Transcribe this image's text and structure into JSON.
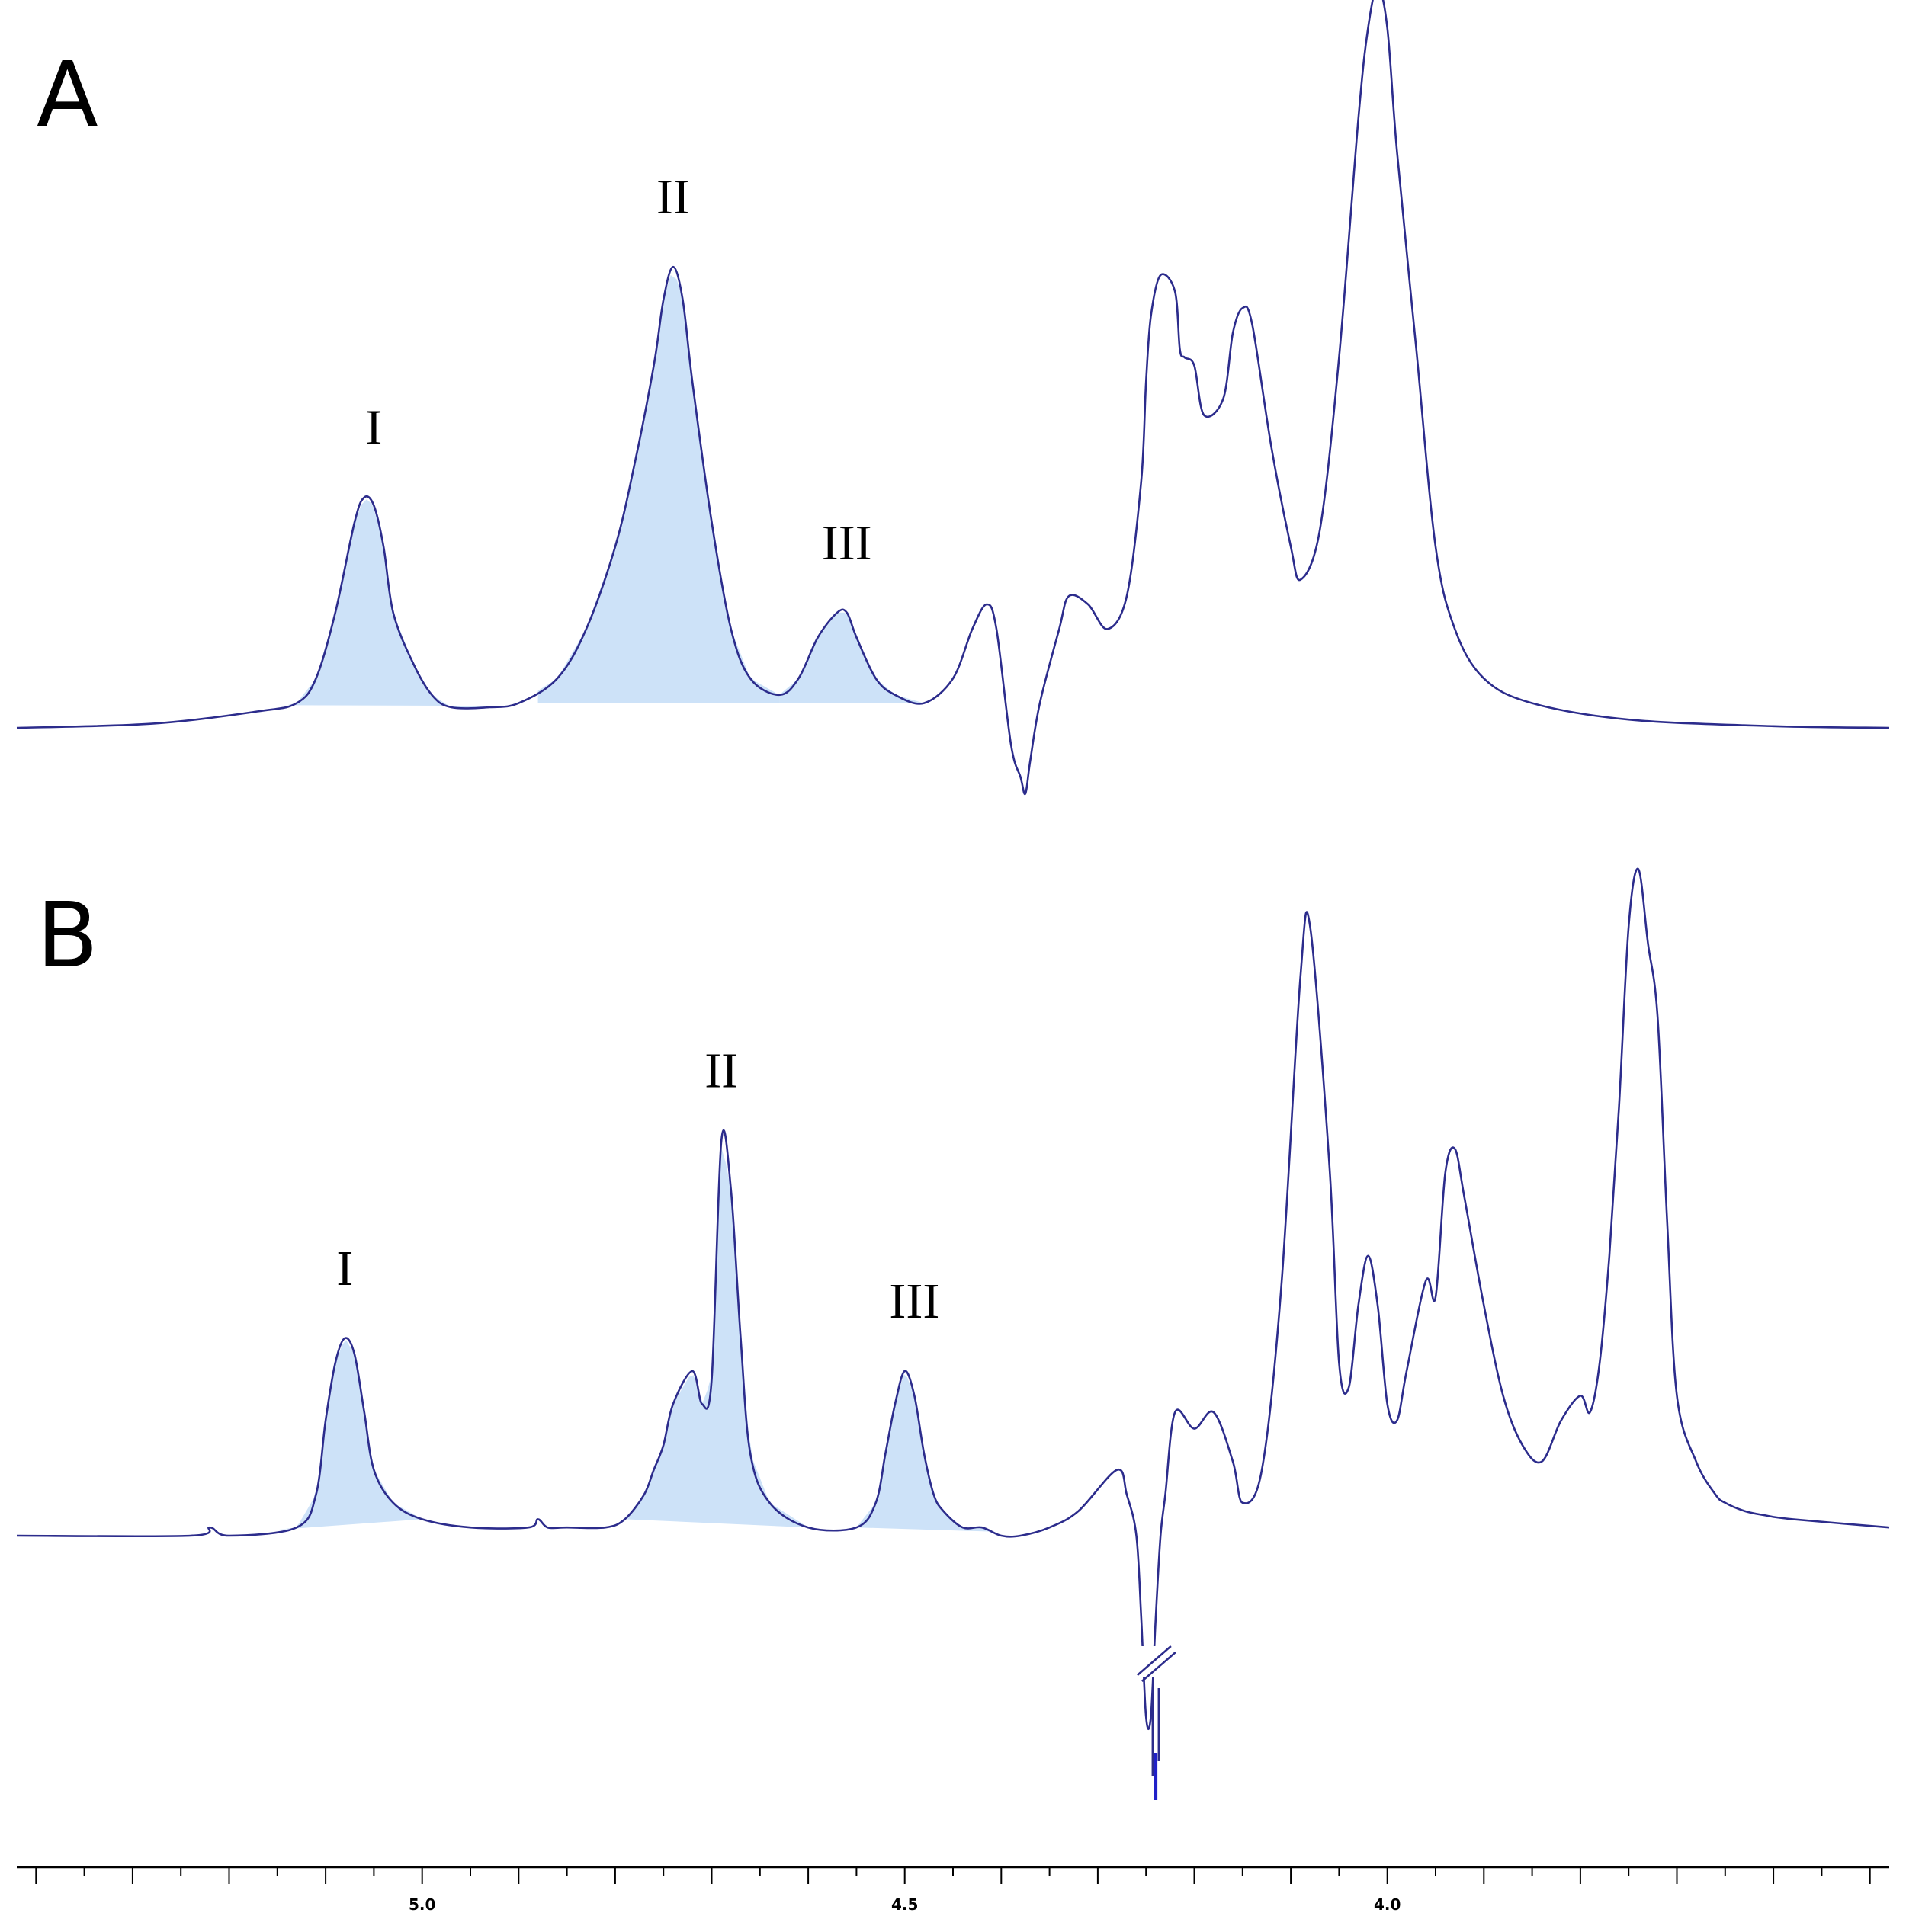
{
  "chart_data": [
    {
      "type": "line",
      "panel": "A",
      "x_unit": "ppm",
      "xlim": [
        5.42,
        3.48
      ],
      "x_reversed": true,
      "peaks": [
        {
          "label": "I",
          "x": 5.05,
          "height": 0.28
        },
        {
          "label": "II",
          "x": 4.74,
          "height": 0.56
        },
        {
          "label": "III",
          "x": 4.56,
          "height": 0.14
        }
      ],
      "integrated_regions": [
        {
          "label": "I",
          "x_from": 5.14,
          "x_to": 4.92
        },
        {
          "label": "II",
          "x_from": 4.88,
          "x_to": 4.63
        },
        {
          "label": "III",
          "x_from": 4.63,
          "x_to": 4.48
        }
      ],
      "series": [
        {
          "x": [
            5.42,
            5.28,
            5.17,
            5.13,
            5.11,
            5.09,
            5.07,
            5.06,
            5.05,
            5.04,
            5.03,
            5.01,
            4.99,
            4.97,
            4.93,
            4.9,
            4.86,
            4.83,
            4.8,
            4.78,
            4.76,
            4.75,
            4.74,
            4.73,
            4.72,
            4.7,
            4.68,
            4.66,
            4.63,
            4.61,
            4.59,
            4.57,
            4.56,
            4.55,
            4.53,
            4.51,
            4.48,
            4.45,
            4.43,
            4.415,
            4.405,
            4.39,
            4.38,
            4.375,
            4.37,
            4.36,
            4.34,
            4.33,
            4.31,
            4.29,
            4.27,
            4.255,
            4.25,
            4.245,
            4.235,
            4.22,
            4.215,
            4.21,
            4.2,
            4.19,
            4.17,
            4.16,
            4.15,
            4.14,
            4.12,
            4.1,
            4.09,
            4.07,
            4.05,
            4.03,
            4.02,
            4.01,
            4.0,
            3.99,
            3.97,
            3.95,
            3.93,
            3.9,
            3.85,
            3.75,
            3.6,
            3.48
          ],
          "y": [
            0.0,
            0.005,
            0.02,
            0.03,
            0.06,
            0.14,
            0.25,
            0.28,
            0.27,
            0.22,
            0.14,
            0.08,
            0.04,
            0.025,
            0.025,
            0.03,
            0.06,
            0.12,
            0.22,
            0.32,
            0.44,
            0.52,
            0.56,
            0.52,
            0.42,
            0.25,
            0.12,
            0.06,
            0.04,
            0.06,
            0.11,
            0.14,
            0.14,
            0.11,
            0.06,
            0.04,
            0.03,
            0.06,
            0.12,
            0.15,
            0.12,
            -0.02,
            -0.06,
            -0.08,
            -0.04,
            0.03,
            0.12,
            0.16,
            0.15,
            0.12,
            0.16,
            0.3,
            0.42,
            0.5,
            0.55,
            0.53,
            0.46,
            0.45,
            0.44,
            0.38,
            0.4,
            0.48,
            0.51,
            0.49,
            0.34,
            0.22,
            0.18,
            0.24,
            0.45,
            0.74,
            0.85,
            0.9,
            0.85,
            0.7,
            0.46,
            0.22,
            0.12,
            0.06,
            0.03,
            0.01,
            0.002,
            0.0
          ]
        }
      ]
    },
    {
      "type": "line",
      "panel": "B",
      "x_unit": "ppm",
      "xlim": [
        5.42,
        3.48
      ],
      "x_reversed": true,
      "peaks": [
        {
          "label": "I",
          "x": 5.08,
          "height": 0.24
        },
        {
          "label": "II",
          "x": 4.69,
          "height": 0.48
        },
        {
          "label": "III",
          "x": 4.49,
          "height": 0.2
        }
      ],
      "integrated_regions": [
        {
          "label": "I",
          "x_from": 5.15,
          "x_to": 5.0
        },
        {
          "label": "II",
          "x_from": 4.79,
          "x_to": 4.6
        },
        {
          "label": "III",
          "x_from": 4.55,
          "x_to": 4.41
        }
      ],
      "series": [
        {
          "x": [
            5.42,
            5.24,
            5.22,
            5.2,
            5.13,
            5.11,
            5.1,
            5.09,
            5.08,
            5.07,
            5.06,
            5.05,
            5.03,
            5.0,
            4.95,
            4.89,
            4.88,
            4.87,
            4.85,
            4.81,
            4.79,
            4.77,
            4.76,
            4.75,
            4.74,
            4.72,
            4.71,
            4.7,
            4.69,
            4.68,
            4.67,
            4.66,
            4.64,
            4.6,
            4.55,
            4.53,
            4.52,
            4.51,
            4.5,
            4.49,
            4.48,
            4.47,
            4.46,
            4.44,
            4.42,
            4.4,
            4.38,
            4.35,
            4.32,
            4.28,
            4.27,
            4.26,
            4.255,
            4.25,
            4.245,
            4.24,
            4.235,
            4.23,
            4.22,
            4.2,
            4.18,
            4.16,
            4.15,
            4.13,
            4.11,
            4.09,
            4.08,
            4.06,
            4.05,
            4.04,
            4.03,
            4.02,
            4.01,
            4.0,
            3.99,
            3.98,
            3.96,
            3.95,
            3.94,
            3.93,
            3.92,
            3.9,
            3.88,
            3.86,
            3.84,
            3.82,
            3.8,
            3.79,
            3.78,
            3.77,
            3.76,
            3.75,
            3.74,
            3.73,
            3.72,
            3.71,
            3.7,
            3.68,
            3.66,
            3.65,
            3.63,
            3.61,
            3.58,
            3.48
          ],
          "y": [
            0.0,
            0.0,
            0.01,
            0.0,
            0.01,
            0.05,
            0.14,
            0.21,
            0.24,
            0.22,
            0.15,
            0.08,
            0.04,
            0.02,
            0.01,
            0.01,
            0.02,
            0.01,
            0.01,
            0.01,
            0.02,
            0.05,
            0.08,
            0.11,
            0.16,
            0.2,
            0.16,
            0.19,
            0.48,
            0.42,
            0.24,
            0.1,
            0.04,
            0.01,
            0.01,
            0.04,
            0.1,
            0.16,
            0.2,
            0.17,
            0.1,
            0.05,
            0.03,
            0.01,
            0.01,
            0.0,
            0.0,
            0.01,
            0.03,
            0.08,
            0.05,
            0.0,
            -0.1,
            -0.22,
            -0.22,
            -0.1,
            0.0,
            0.05,
            0.15,
            0.13,
            0.15,
            0.09,
            0.04,
            0.08,
            0.3,
            0.68,
            0.74,
            0.45,
            0.21,
            0.18,
            0.28,
            0.34,
            0.28,
            0.16,
            0.14,
            0.2,
            0.31,
            0.29,
            0.44,
            0.47,
            0.41,
            0.28,
            0.17,
            0.11,
            0.09,
            0.14,
            0.17,
            0.15,
            0.21,
            0.34,
            0.52,
            0.74,
            0.81,
            0.72,
            0.63,
            0.38,
            0.17,
            0.09,
            0.05,
            0.04,
            0.03,
            0.025,
            0.02,
            0.01
          ]
        }
      ]
    }
  ],
  "panels": [
    {
      "letter": "A",
      "labels": [
        "I",
        "II",
        "III"
      ]
    },
    {
      "letter": "B",
      "labels": [
        "I",
        "II",
        "III"
      ]
    }
  ],
  "x_axis": {
    "major_ticks": [
      5.0,
      4.5,
      4.0
    ],
    "tick_labels": [
      "5.0",
      "4.5",
      "4.0"
    ],
    "minor_tick_step": 0.05
  },
  "colors": {
    "trace": "#2c2c8c",
    "integral_fill": "#cde2f8",
    "axis": "#000000"
  },
  "b_panel_break": {
    "x": 4.24,
    "note_icon": "axis-break-icon"
  }
}
